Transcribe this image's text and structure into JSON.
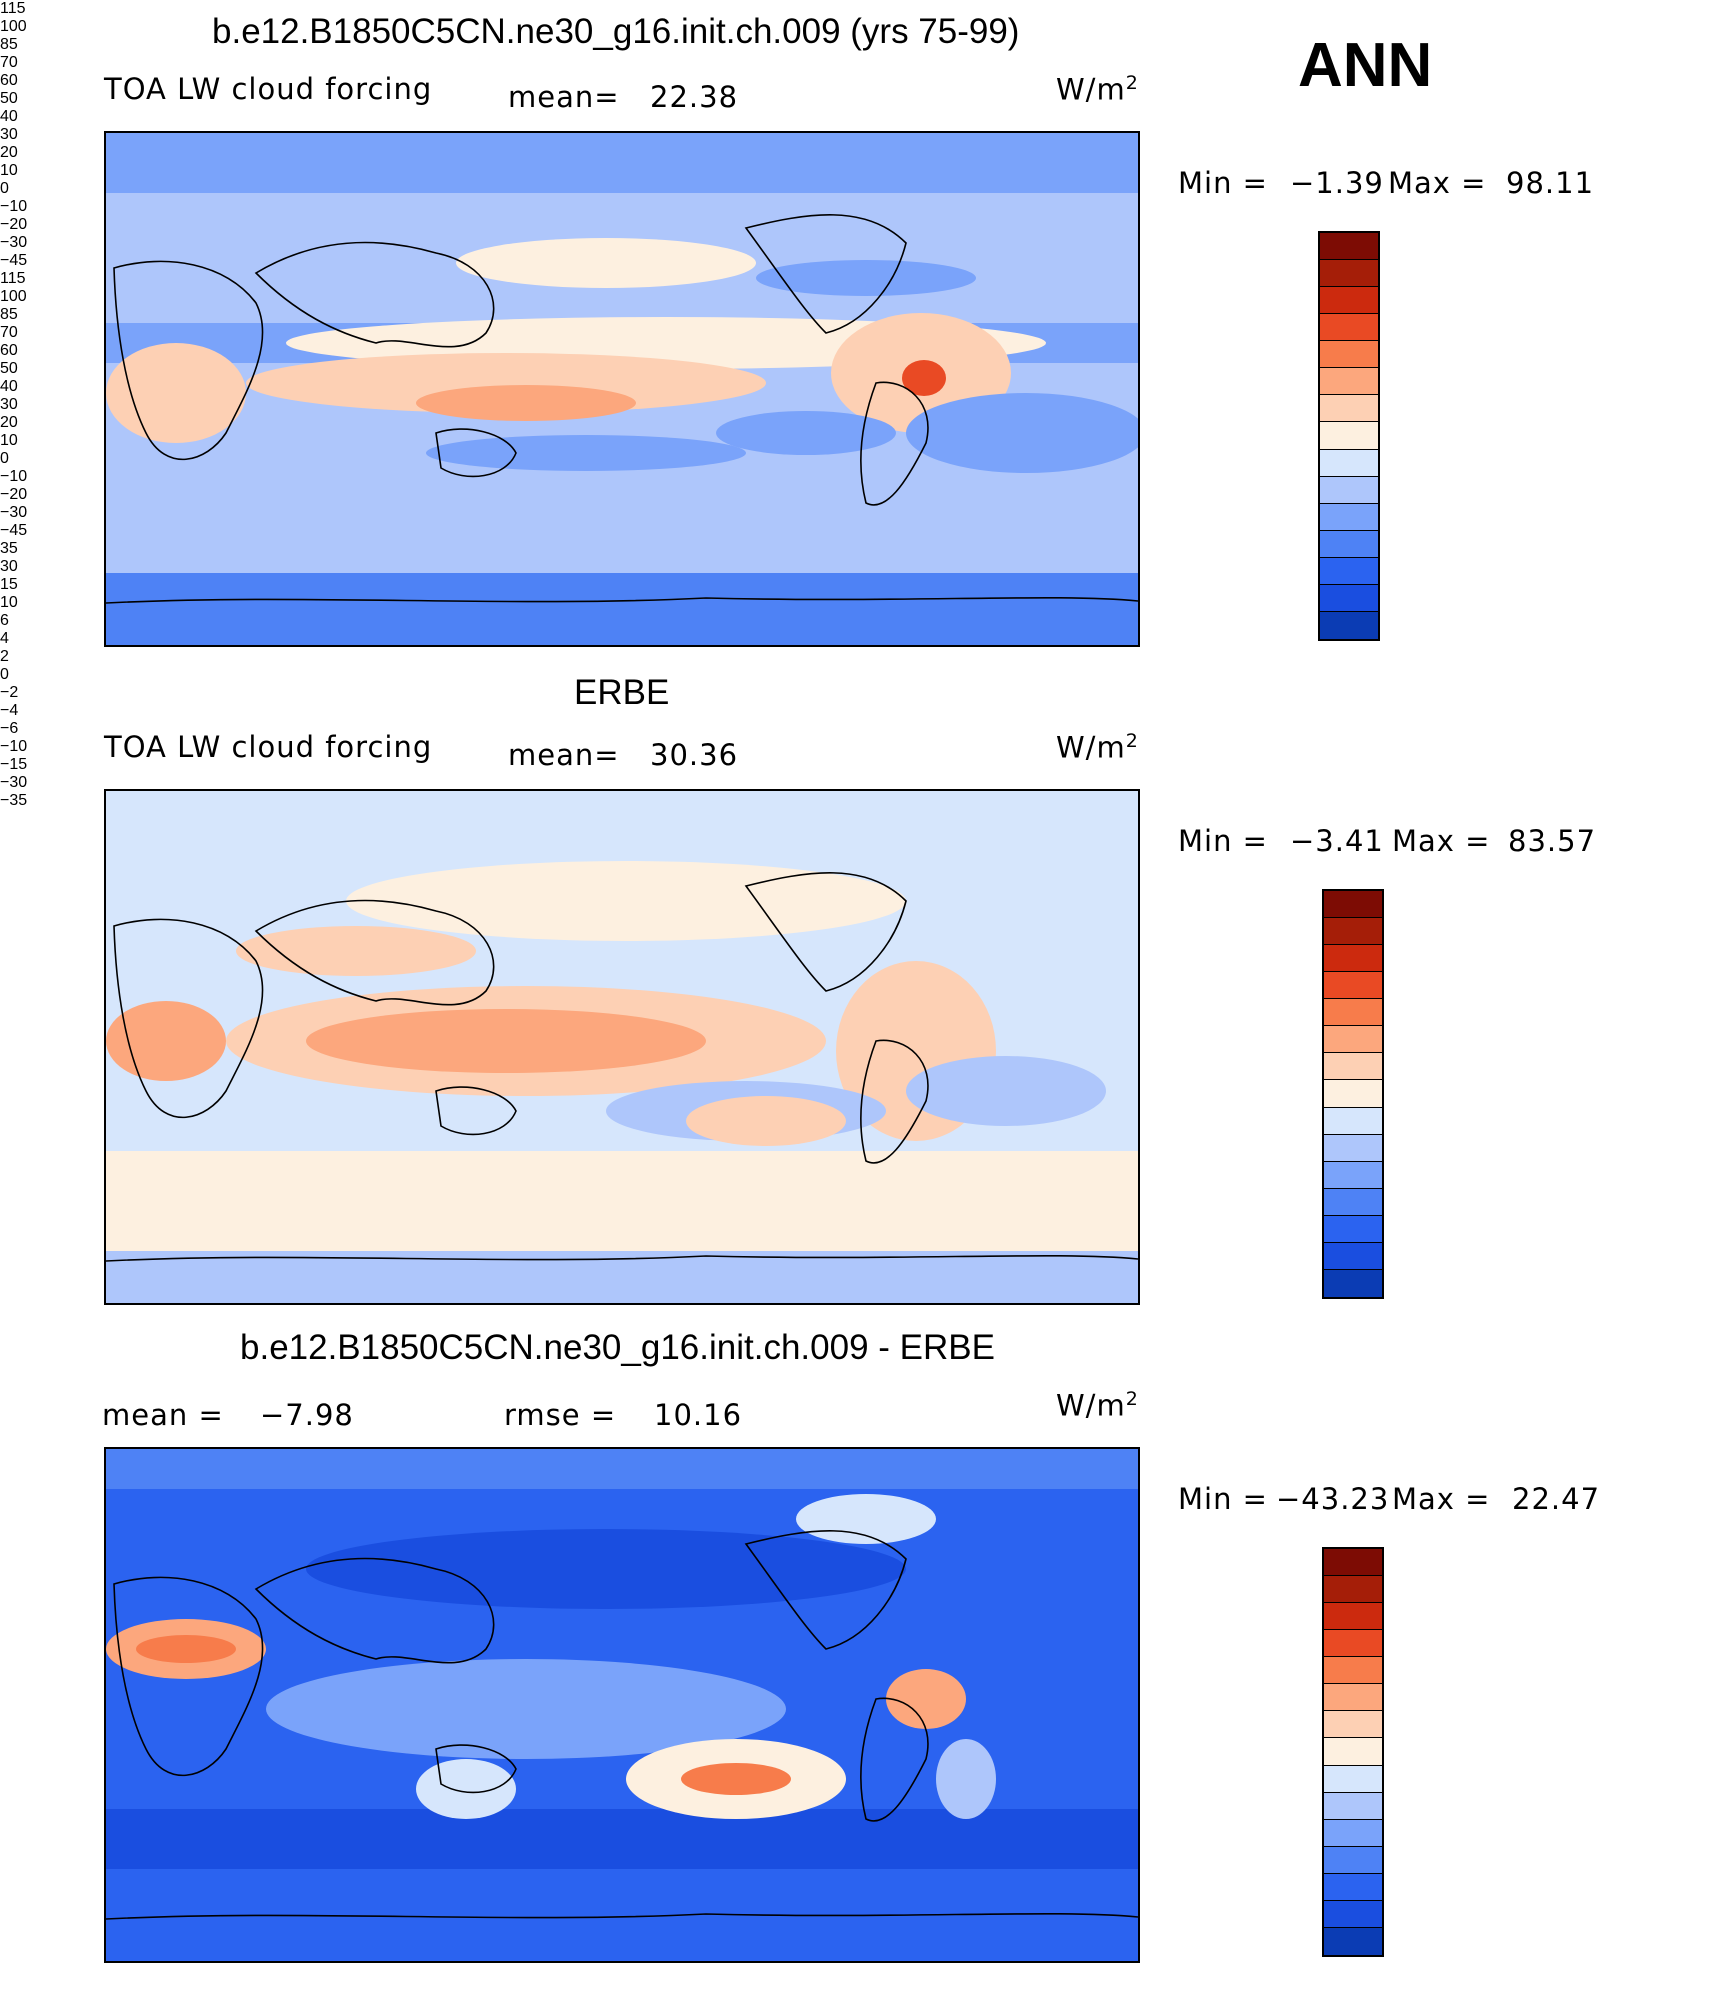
{
  "season": "ANN",
  "units_label": "W/m",
  "units_exp": "2",
  "colors": {
    "abs_scale": [
      "#082f7d",
      "#0b3cb4",
      "#1a4ee0",
      "#2b63f0",
      "#4e82f5",
      "#7aa3fa",
      "#aec6fb",
      "#d6e6fc",
      "#fdf0e0",
      "#fdd0b4",
      "#fca77d",
      "#f77c4b",
      "#e94a24",
      "#cc2a0e",
      "#a51e08",
      "#7d0c04"
    ],
    "diff_scale": [
      "#082f7d",
      "#0b3cb4",
      "#1a4ee0",
      "#2b63f0",
      "#4e82f5",
      "#7aa3fa",
      "#aec6fb",
      "#d6e6fc",
      "#fdf0e0",
      "#fdd0b4",
      "#fca77d",
      "#f77c4b",
      "#e94a24",
      "#cc2a0e",
      "#a51e08",
      "#7d0c04"
    ]
  },
  "panels": [
    {
      "id": "model",
      "title": "b.e12.B1850C5CN.ne30_g16.init.ch.009 (yrs 75-99)",
      "left_label": "TOA LW cloud forcing",
      "mean_label": "mean=",
      "mean_value": "22.38",
      "min_label": "Min =",
      "min_value": "−1.39",
      "max_label": "Max =",
      "max_value": "98.11",
      "ticks": [
        "115",
        "100",
        "85",
        "70",
        "60",
        "50",
        "40",
        "30",
        "20",
        "10",
        "0",
        "−10",
        "−20",
        "−30",
        "−45"
      ]
    },
    {
      "id": "obs",
      "title": "ERBE",
      "left_label": "TOA LW cloud forcing",
      "mean_label": "mean=",
      "mean_value": "30.36",
      "min_label": "Min =",
      "min_value": "−3.41",
      "max_label": "Max =",
      "max_value": "83.57",
      "ticks": [
        "115",
        "100",
        "85",
        "70",
        "60",
        "50",
        "40",
        "30",
        "20",
        "10",
        "0",
        "−10",
        "−20",
        "−30",
        "−45"
      ]
    },
    {
      "id": "diff",
      "title": "b.e12.B1850C5CN.ne30_g16.init.ch.009 - ERBE",
      "mean_label": "mean =",
      "mean_value": "−7.98",
      "rmse_label": "rmse =",
      "rmse_value": "10.16",
      "min_label": "Min =",
      "min_value": "−43.23",
      "max_label": "Max =",
      "max_value": "22.47",
      "ticks": [
        "35",
        "30",
        "15",
        "10",
        "6",
        "4",
        "2",
        "0",
        "−2",
        "−4",
        "−6",
        "−10",
        "−15",
        "−30",
        "−35"
      ]
    }
  ],
  "chart_data": [
    {
      "type": "heatmap",
      "title": "b.e12.B1850C5CN.ne30_g16.init.ch.009 (yrs 75-99)",
      "variable": "TOA LW cloud forcing",
      "units": "W/m2",
      "mean": 22.38,
      "min": -1.39,
      "max": 98.11,
      "contour_levels": [
        -45,
        -30,
        -20,
        -10,
        0,
        10,
        20,
        30,
        40,
        50,
        60,
        70,
        85,
        100,
        115
      ],
      "domain": "global lat/lon map, Pacific-centered",
      "season": "ANN"
    },
    {
      "type": "heatmap",
      "title": "ERBE",
      "variable": "TOA LW cloud forcing",
      "units": "W/m2",
      "mean": 30.36,
      "min": -3.41,
      "max": 83.57,
      "contour_levels": [
        -45,
        -30,
        -20,
        -10,
        0,
        10,
        20,
        30,
        40,
        50,
        60,
        70,
        85,
        100,
        115
      ],
      "domain": "global lat/lon map, Pacific-centered",
      "season": "ANN"
    },
    {
      "type": "heatmap",
      "title": "b.e12.B1850C5CN.ne30_g16.init.ch.009 - ERBE",
      "variable": "TOA LW cloud forcing difference",
      "units": "W/m2",
      "mean": -7.98,
      "rmse": 10.16,
      "min": -43.23,
      "max": 22.47,
      "contour_levels": [
        -35,
        -30,
        -15,
        -10,
        -6,
        -4,
        -2,
        0,
        2,
        4,
        6,
        10,
        15,
        30,
        35
      ],
      "domain": "global lat/lon map, Pacific-centered",
      "season": "ANN"
    }
  ]
}
